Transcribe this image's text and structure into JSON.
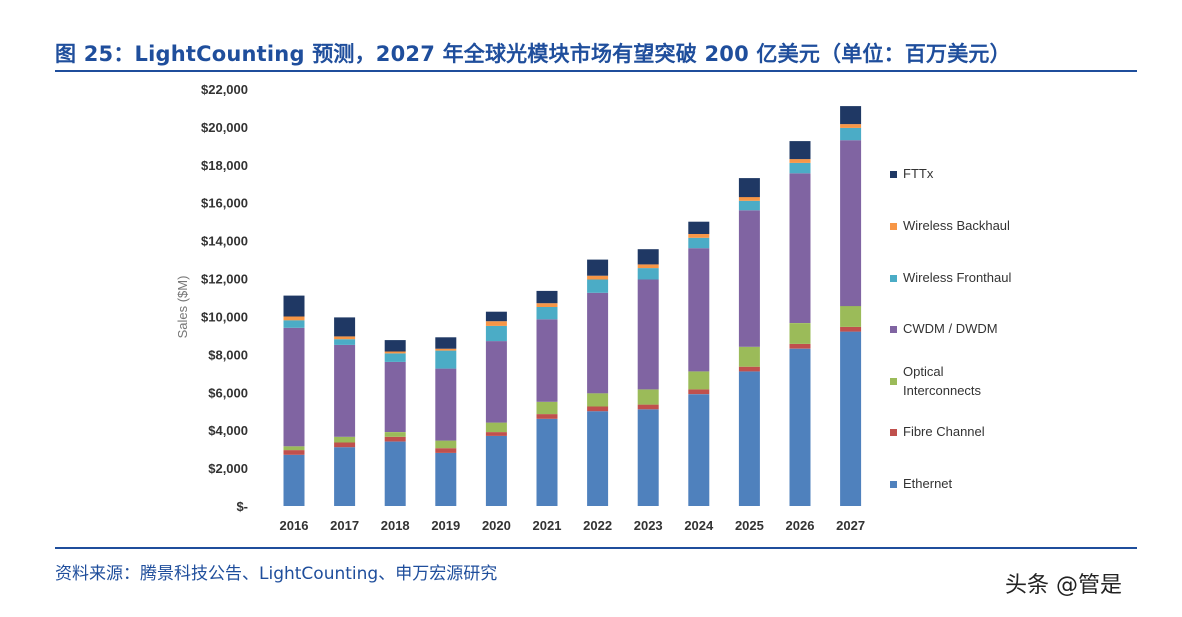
{
  "figure": {
    "title": "图 25：LightCounting 预测，2027 年全球光模块市场有望突破 200 亿美元（单位：百万美元）",
    "source": "资料来源：腾景科技公告、LightCounting、申万宏源研究",
    "watermark": "头条 @管是"
  },
  "chart_data": {
    "type": "bar",
    "stacked": true,
    "title": "",
    "xlabel": "",
    "ylabel": "Sales ($M)",
    "ylim": [
      0,
      22000
    ],
    "yticks": [
      0,
      2000,
      4000,
      6000,
      8000,
      10000,
      12000,
      14000,
      16000,
      18000,
      20000,
      22000
    ],
    "ytick_labels": [
      "$-",
      "$2,000",
      "$4,000",
      "$6,000",
      "$8,000",
      "$10,000",
      "$12,000",
      "$14,000",
      "$16,000",
      "$18,000",
      "$20,000",
      "$22,000"
    ],
    "categories": [
      "2016",
      "2017",
      "2018",
      "2019",
      "2020",
      "2021",
      "2022",
      "2023",
      "2024",
      "2025",
      "2026",
      "2027"
    ],
    "legend_position": "right",
    "grid": false,
    "series": [
      {
        "name": "Ethernet",
        "color": "#4f81bd",
        "values": [
          2700,
          3100,
          3400,
          2800,
          3700,
          4600,
          5000,
          5100,
          5900,
          7100,
          8300,
          9200
        ]
      },
      {
        "name": "Fibre Channel",
        "color": "#c0504d",
        "values": [
          250,
          250,
          250,
          250,
          200,
          250,
          250,
          250,
          250,
          250,
          250,
          250
        ]
      },
      {
        "name": "Optical Interconnects",
        "color": "#9bbb59",
        "values": [
          200,
          300,
          250,
          400,
          500,
          650,
          700,
          800,
          950,
          1050,
          1100,
          1100
        ]
      },
      {
        "name": "CWDM / DWDM",
        "color": "#8064a2",
        "values": [
          6250,
          4850,
          3700,
          3800,
          4300,
          4350,
          5300,
          5800,
          6500,
          7200,
          7900,
          8750
        ]
      },
      {
        "name": "Wireless Fronthaul",
        "color": "#4bacc6",
        "values": [
          400,
          300,
          450,
          950,
          800,
          650,
          700,
          600,
          550,
          500,
          550,
          650
        ]
      },
      {
        "name": "Wireless Backhaul",
        "color": "#f79646",
        "values": [
          200,
          150,
          100,
          100,
          250,
          200,
          200,
          200,
          200,
          200,
          200,
          200
        ]
      },
      {
        "name": "FTTx",
        "color": "#1f3864",
        "values": [
          1100,
          1000,
          600,
          600,
          500,
          650,
          850,
          800,
          650,
          1000,
          950,
          950
        ]
      }
    ]
  }
}
